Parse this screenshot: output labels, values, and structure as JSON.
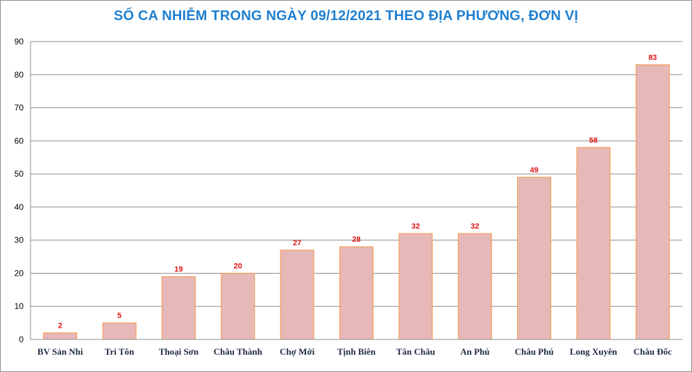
{
  "chart_data": {
    "type": "bar",
    "title": "SỐ CA NHIỄM TRONG NGÀY 09/12/2021 THEO ĐỊA PHƯƠNG, ĐƠN VỊ",
    "xlabel": "",
    "ylabel": "",
    "categories": [
      "BV Sản Nhi",
      "Tri Tôn",
      "Thoại  Sơn",
      "Châu Thành",
      "Chợ Mới",
      "Tịnh Biên",
      "Tân Châu",
      "An Phú",
      "Châu Phú",
      "Long Xuyên",
      "Châu Đốc"
    ],
    "values": [
      2,
      5,
      19,
      20,
      27,
      28,
      32,
      32,
      49,
      58,
      83
    ],
    "ylim": [
      0,
      90
    ],
    "yticks": [
      0,
      10,
      20,
      30,
      40,
      50,
      60,
      70,
      80,
      90
    ],
    "grid": true,
    "legend": "none",
    "colors": {
      "bar_fill": "#e6b8b7",
      "bar_stroke": "#f79646",
      "data_label": "#e01010",
      "title": "#1f7fd1",
      "gridline": "#8c8c8c"
    }
  }
}
